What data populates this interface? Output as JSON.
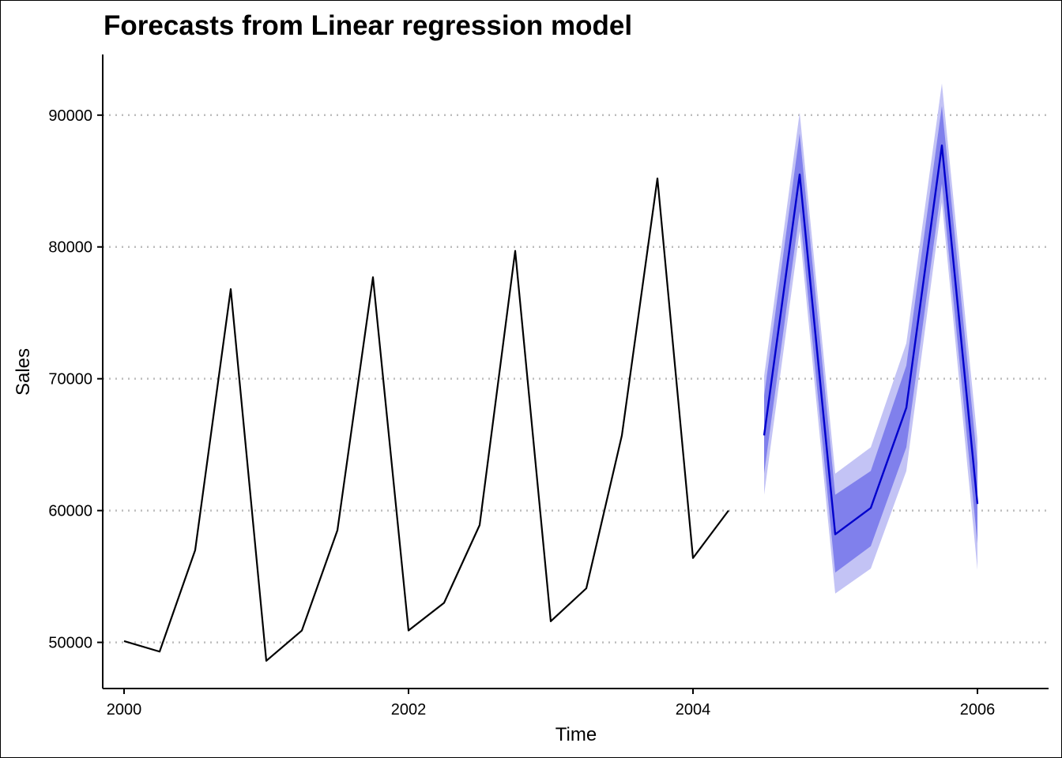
{
  "chart_data": {
    "type": "line",
    "title": "Forecasts from Linear regression model",
    "xlabel": "Time",
    "ylabel": "Sales",
    "xlim": [
      1999.85,
      2006.5
    ],
    "ylim": [
      46500,
      94600
    ],
    "x_ticks": [
      2000,
      2002,
      2004,
      2006
    ],
    "x_tick_labels": [
      "2000",
      "2002",
      "2004",
      "2006"
    ],
    "y_ticks": [
      50000,
      60000,
      70000,
      80000,
      90000
    ],
    "y_tick_labels": [
      "50000",
      "60000",
      "70000",
      "80000",
      "90000"
    ],
    "grid": "horizontal dotted",
    "legend": "none",
    "series": [
      {
        "kind": "history",
        "color": "#000000",
        "x": [
          2000.0,
          2000.25,
          2000.5,
          2000.75,
          2001.0,
          2001.25,
          2001.5,
          2001.75,
          2002.0,
          2002.25,
          2002.5,
          2002.75,
          2003.0,
          2003.25,
          2003.5,
          2003.75,
          2004.0,
          2004.25
        ],
        "values": [
          50100,
          49300,
          57000,
          76800,
          48600,
          50900,
          58500,
          77700,
          50900,
          53000,
          58900,
          79700,
          51600,
          54100,
          65700,
          85200,
          56400,
          60000
        ]
      },
      {
        "kind": "forecast",
        "color": "#0000cc",
        "x": [
          2004.5,
          2004.75,
          2005.0,
          2005.25,
          2005.5,
          2005.75,
          2006.0
        ],
        "values": [
          65700,
          85500,
          58200,
          60200,
          67800,
          87700,
          60500
        ]
      }
    ],
    "intervals": [
      {
        "level": "95",
        "color": "#c3c3f5",
        "lower": [
          61200,
          81200,
          53700,
          55600,
          63000,
          83400,
          55500
        ],
        "upper": [
          70200,
          90200,
          62800,
          64800,
          72700,
          92400,
          65400
        ]
      },
      {
        "level": "80",
        "color": "#8080ec",
        "lower": [
          62800,
          82700,
          55300,
          57300,
          64800,
          84800,
          57500
        ],
        "upper": [
          68700,
          88600,
          61200,
          63000,
          71000,
          90700,
          63600
        ]
      }
    ]
  }
}
